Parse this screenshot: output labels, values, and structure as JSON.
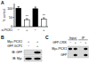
{
  "chart_data": {
    "type": "bar",
    "panel": "A",
    "y_label": "% control",
    "x_label": "si-PICK1",
    "categories": [
      "−",
      "+",
      "−",
      "+"
    ],
    "values": [
      100,
      38,
      97,
      42
    ],
    "errors": [
      8,
      5,
      9,
      6
    ],
    "colors": [
      "#000000",
      "#ffffff",
      "#000000",
      "#ffffff"
    ],
    "significance": [
      null,
      "**",
      null,
      "**"
    ],
    "ylim": [
      0,
      125
    ],
    "yticks": [
      0,
      50,
      100
    ],
    "grid": false
  },
  "blots": [
    {
      "panel": "B",
      "groups": [],
      "conditions": [
        {
          "label": "Myc-PICK1",
          "values": [
            "+",
            "+"
          ]
        },
        {
          "label": "GFP-GCP1",
          "values": [
            "−",
            "+"
          ]
        }
      ],
      "rows": [
        {
          "label": "IB: GFP",
          "bands": [
            0,
            1
          ]
        },
        {
          "label": "IB: Myc",
          "bands": [
            1,
            1
          ]
        }
      ]
    },
    {
      "panel": "C",
      "groups": [
        "Input",
        "IP"
      ],
      "conditions": [
        {
          "label": "GFP-CRIK",
          "values": [
            "−",
            "+",
            "−",
            "+"
          ]
        }
      ],
      "rows": [
        {
          "label": "Myc-PICK1",
          "bands": [
            1,
            1,
            0,
            1
          ]
        },
        {
          "label": "GFP",
          "bands": [
            0,
            1,
            0,
            1
          ]
        }
      ]
    }
  ]
}
